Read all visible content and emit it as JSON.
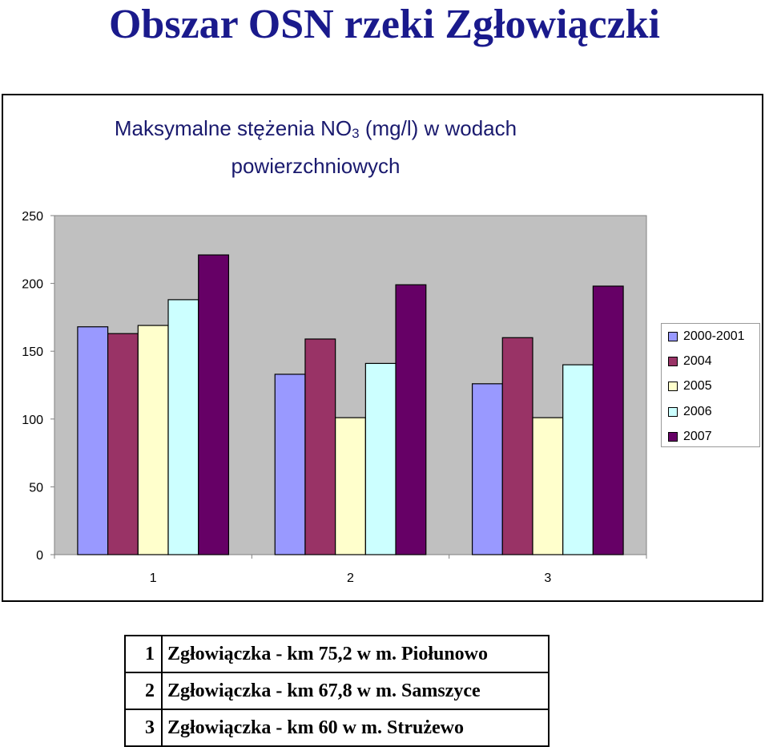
{
  "slide": {
    "title": "Obszar OSN rzeki Zgłowiączki"
  },
  "chart": {
    "title_line1_pre": "Maksymalne stężenia NO",
    "title_line1_sub": "3",
    "title_line1_post": " (mg/l) w wodach",
    "title_line2": "powierzchniowych"
  },
  "chart_data": {
    "type": "bar",
    "categories": [
      "1",
      "2",
      "3"
    ],
    "series": [
      {
        "name": "2000-2001",
        "values": [
          168,
          133,
          126
        ],
        "color": "#9999ff"
      },
      {
        "name": "2004",
        "values": [
          163,
          159,
          160
        ],
        "color": "#993366"
      },
      {
        "name": "2005",
        "values": [
          169,
          101,
          101
        ],
        "color": "#ffffcc"
      },
      {
        "name": "2006",
        "values": [
          188,
          141,
          140
        ],
        "color": "#ccffff"
      },
      {
        "name": "2007",
        "values": [
          221,
          199,
          198
        ],
        "color": "#660066"
      }
    ],
    "ylim": [
      0,
      250
    ],
    "yticks": [
      "0",
      "50",
      "100",
      "150",
      "200",
      "250"
    ],
    "plot_background": "#c0c0c0",
    "grid": false,
    "legend_position": "right"
  },
  "location_table": {
    "rows": [
      {
        "num": "1",
        "label": "Zgłowiączka - km 75,2 w m. Piołunowo"
      },
      {
        "num": "2",
        "label": "Zgłowiączka - km 67,8 w m. Samszyce"
      },
      {
        "num": "3",
        "label": "Zgłowiączka - km 60 w m.  Strużewo"
      }
    ]
  }
}
